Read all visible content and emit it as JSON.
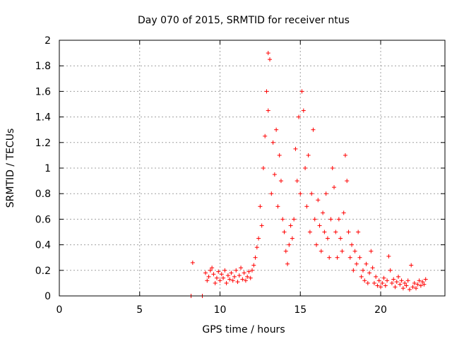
{
  "chart_data": {
    "type": "scatter",
    "title": "Day 070 of 2015, SRMTID for receiver ntus",
    "xlabel": "GPS time / hours",
    "ylabel": "SRMTID / TECUs",
    "xlim": [
      0,
      24
    ],
    "ylim": [
      0,
      2
    ],
    "xticks": [
      0,
      5,
      10,
      15,
      20
    ],
    "yticks": [
      0,
      0.2,
      0.4,
      0.6,
      0.8,
      1,
      1.2,
      1.4,
      1.6,
      1.8,
      2
    ],
    "xtick_labels": [
      "0",
      "5",
      "10",
      "15",
      "20"
    ],
    "ytick_labels": [
      "0",
      "0.2",
      "0.4",
      "0.6",
      "0.8",
      "1",
      "1.2",
      "1.4",
      "1.6",
      "1.8",
      "2"
    ],
    "grid": true,
    "marker": "plus",
    "color": "#ff0000",
    "series": [
      {
        "name": "SRMTID",
        "points": [
          [
            8.2,
            0.0
          ],
          [
            8.3,
            0.26
          ],
          [
            8.9,
            0.0
          ],
          [
            9.1,
            0.18
          ],
          [
            9.2,
            0.12
          ],
          [
            9.3,
            0.15
          ],
          [
            9.4,
            0.2
          ],
          [
            9.5,
            0.22
          ],
          [
            9.6,
            0.17
          ],
          [
            9.7,
            0.1
          ],
          [
            9.8,
            0.14
          ],
          [
            9.9,
            0.19
          ],
          [
            10.0,
            0.12
          ],
          [
            10.1,
            0.17
          ],
          [
            10.2,
            0.14
          ],
          [
            10.3,
            0.2
          ],
          [
            10.4,
            0.1
          ],
          [
            10.5,
            0.16
          ],
          [
            10.6,
            0.13
          ],
          [
            10.7,
            0.18
          ],
          [
            10.8,
            0.12
          ],
          [
            10.9,
            0.15
          ],
          [
            11.0,
            0.2
          ],
          [
            11.1,
            0.11
          ],
          [
            11.2,
            0.16
          ],
          [
            11.3,
            0.22
          ],
          [
            11.4,
            0.13
          ],
          [
            11.5,
            0.18
          ],
          [
            11.6,
            0.12
          ],
          [
            11.7,
            0.15
          ],
          [
            11.8,
            0.19
          ],
          [
            11.9,
            0.14
          ],
          [
            12.0,
            0.2
          ],
          [
            12.1,
            0.24
          ],
          [
            12.2,
            0.3
          ],
          [
            12.3,
            0.38
          ],
          [
            12.4,
            0.45
          ],
          [
            12.5,
            0.7
          ],
          [
            12.6,
            0.55
          ],
          [
            12.7,
            1.0
          ],
          [
            12.8,
            1.25
          ],
          [
            12.9,
            1.6
          ],
          [
            13.0,
            1.9
          ],
          [
            13.1,
            1.85
          ],
          [
            13.0,
            1.45
          ],
          [
            13.2,
            0.8
          ],
          [
            13.3,
            1.2
          ],
          [
            13.4,
            0.95
          ],
          [
            13.5,
            1.3
          ],
          [
            13.6,
            0.7
          ],
          [
            13.7,
            1.1
          ],
          [
            13.8,
            0.9
          ],
          [
            13.9,
            0.6
          ],
          [
            14.0,
            0.5
          ],
          [
            14.1,
            0.35
          ],
          [
            14.2,
            0.25
          ],
          [
            14.3,
            0.4
          ],
          [
            14.4,
            0.55
          ],
          [
            14.5,
            0.45
          ],
          [
            14.6,
            0.6
          ],
          [
            14.7,
            1.15
          ],
          [
            14.8,
            0.9
          ],
          [
            14.9,
            1.4
          ],
          [
            15.0,
            0.8
          ],
          [
            15.1,
            1.6
          ],
          [
            15.2,
            1.45
          ],
          [
            15.3,
            1.0
          ],
          [
            15.4,
            0.7
          ],
          [
            15.5,
            1.1
          ],
          [
            15.6,
            0.5
          ],
          [
            15.7,
            0.8
          ],
          [
            15.8,
            1.3
          ],
          [
            15.9,
            0.6
          ],
          [
            16.0,
            0.4
          ],
          [
            16.1,
            0.75
          ],
          [
            16.2,
            0.55
          ],
          [
            16.3,
            0.35
          ],
          [
            16.4,
            0.65
          ],
          [
            16.5,
            0.5
          ],
          [
            16.6,
            0.8
          ],
          [
            16.7,
            0.45
          ],
          [
            16.8,
            0.3
          ],
          [
            16.9,
            0.6
          ],
          [
            17.0,
            1.0
          ],
          [
            17.1,
            0.85
          ],
          [
            17.2,
            0.5
          ],
          [
            17.3,
            0.3
          ],
          [
            17.4,
            0.6
          ],
          [
            17.5,
            0.45
          ],
          [
            17.6,
            0.35
          ],
          [
            17.7,
            0.65
          ],
          [
            17.8,
            1.1
          ],
          [
            17.9,
            0.9
          ],
          [
            18.0,
            0.5
          ],
          [
            18.1,
            0.3
          ],
          [
            18.2,
            0.4
          ],
          [
            18.3,
            0.2
          ],
          [
            18.4,
            0.35
          ],
          [
            18.5,
            0.25
          ],
          [
            18.6,
            0.5
          ],
          [
            18.7,
            0.3
          ],
          [
            18.8,
            0.15
          ],
          [
            18.9,
            0.2
          ],
          [
            19.0,
            0.12
          ],
          [
            19.1,
            0.25
          ],
          [
            19.2,
            0.1
          ],
          [
            19.3,
            0.18
          ],
          [
            19.4,
            0.35
          ],
          [
            19.5,
            0.22
          ],
          [
            19.6,
            0.1
          ],
          [
            19.7,
            0.15
          ],
          [
            19.8,
            0.08
          ],
          [
            19.9,
            0.12
          ],
          [
            20.0,
            0.07
          ],
          [
            20.1,
            0.1
          ],
          [
            20.2,
            0.14
          ],
          [
            20.3,
            0.08
          ],
          [
            20.4,
            0.12
          ],
          [
            20.5,
            0.31
          ],
          [
            20.6,
            0.2
          ],
          [
            20.7,
            0.1
          ],
          [
            20.8,
            0.13
          ],
          [
            20.9,
            0.07
          ],
          [
            21.0,
            0.11
          ],
          [
            21.1,
            0.15
          ],
          [
            21.2,
            0.09
          ],
          [
            21.3,
            0.12
          ],
          [
            21.4,
            0.06
          ],
          [
            21.5,
            0.1
          ],
          [
            21.6,
            0.08
          ],
          [
            21.7,
            0.12
          ],
          [
            21.8,
            0.05
          ],
          [
            21.9,
            0.24
          ],
          [
            22.0,
            0.07
          ],
          [
            22.1,
            0.1
          ],
          [
            22.2,
            0.06
          ],
          [
            22.3,
            0.09
          ],
          [
            22.4,
            0.12
          ],
          [
            22.5,
            0.08
          ],
          [
            22.6,
            0.11
          ],
          [
            22.7,
            0.09
          ],
          [
            22.8,
            0.13
          ]
        ]
      }
    ]
  }
}
